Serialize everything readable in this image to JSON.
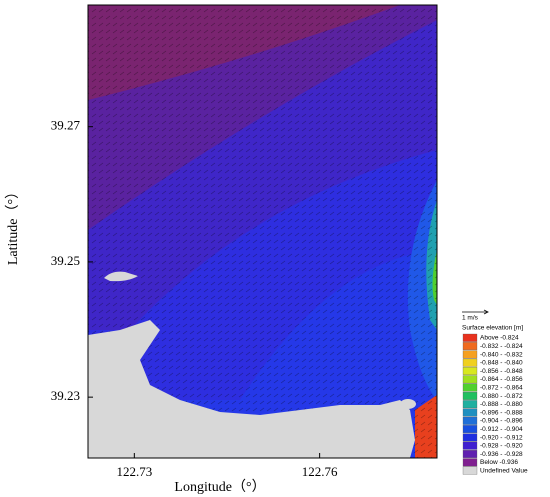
{
  "chart_data": {
    "type": "contour",
    "x_label": "Longitude（°）",
    "y_label": "Latitude（°）",
    "xlim": [
      122.7225,
      122.779
    ],
    "ylim": [
      39.221,
      39.288
    ],
    "xticks": [
      122.73,
      122.76
    ],
    "yticks": [
      39.23,
      39.25,
      39.27
    ],
    "scale_label": "1 m/s",
    "legend_title": "Surface elevation [m]",
    "legend": [
      {
        "name": "Above -0.824",
        "color": "#e8321e"
      },
      {
        "name": "-0.832 - -0.824",
        "color": "#f06a1e"
      },
      {
        "name": "-0.840 - -0.832",
        "color": "#f5a020"
      },
      {
        "name": "-0.848 - -0.840",
        "color": "#f0d020"
      },
      {
        "name": "-0.856 - -0.848",
        "color": "#d8e820"
      },
      {
        "name": "-0.864 - -0.856",
        "color": "#a0e020"
      },
      {
        "name": "-0.872 - -0.864",
        "color": "#50d030"
      },
      {
        "name": "-0.880 - -0.872",
        "color": "#20c060"
      },
      {
        "name": "-0.888 - -0.880",
        "color": "#20b0a0"
      },
      {
        "name": "-0.896 - -0.888",
        "color": "#2090c0"
      },
      {
        "name": "-0.904 - -0.896",
        "color": "#2070d8"
      },
      {
        "name": "-0.912 - -0.904",
        "color": "#1850e0"
      },
      {
        "name": "-0.920 - -0.912",
        "color": "#2030e0"
      },
      {
        "name": "-0.928 - -0.920",
        "color": "#4020d0"
      },
      {
        "name": "-0.936 - -0.928",
        "color": "#6020b0"
      },
      {
        "name": "Below -0.936",
        "color": "#802090"
      },
      {
        "name": "Undefined Value",
        "color": "#d8d8d8"
      }
    ]
  }
}
